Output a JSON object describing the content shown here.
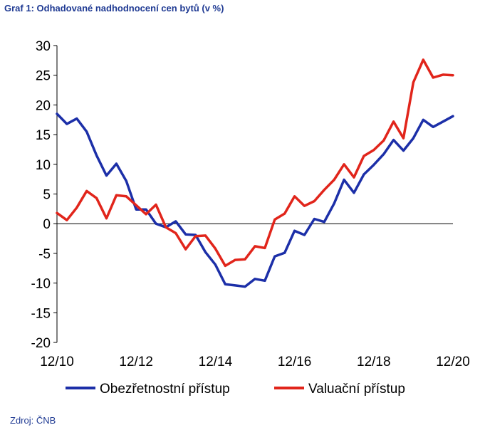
{
  "header": {
    "title": "Graf 1: Odhadované nadhodnocení cen bytů (v %)"
  },
  "footer": {
    "source": "Zdroj: ČNB"
  },
  "colors": {
    "series_blue": "#1c2fa8",
    "series_red": "#e1251b"
  },
  "chart_data": {
    "type": "line",
    "title": "Graf 1: Odhadované nadhodnocení cen bytů (v %)",
    "xlabel": "",
    "ylabel": "",
    "ylim": [
      -20,
      30
    ],
    "yticks": [
      30,
      25,
      20,
      15,
      10,
      5,
      0,
      -5,
      -10,
      -15,
      -20
    ],
    "xticks": [
      "12/10",
      "12/12",
      "12/14",
      "12/16",
      "12/18",
      "12/20"
    ],
    "grid": false,
    "legend": "bottom",
    "x": [
      "12/10",
      "3/11",
      "6/11",
      "9/11",
      "12/11",
      "3/12",
      "6/12",
      "9/12",
      "12/12",
      "3/13",
      "6/13",
      "9/13",
      "12/13",
      "3/14",
      "6/14",
      "9/14",
      "12/14",
      "3/15",
      "6/15",
      "9/15",
      "12/15",
      "3/16",
      "6/16",
      "9/16",
      "12/16",
      "3/17",
      "6/17",
      "9/17",
      "12/17",
      "3/18",
      "6/18",
      "9/18",
      "12/18",
      "3/19",
      "6/19",
      "9/19",
      "12/19",
      "3/20",
      "6/20",
      "9/20",
      "12/20"
    ],
    "series": [
      {
        "name": "Obezřetnostní přístup",
        "color": "#1c2fa8",
        "values": [
          18.5,
          16.8,
          17.7,
          15.5,
          11.5,
          8.1,
          10.1,
          7.2,
          2.4,
          2.4,
          0,
          -0.6,
          0.4,
          -1.8,
          -1.9,
          -4.8,
          -6.9,
          -10.2,
          -10.4,
          -10.6,
          -9.3,
          -9.6,
          -5.5,
          -4.9,
          -1.2,
          -1.9,
          0.8,
          0.3,
          3.4,
          7.4,
          5.2,
          8.3,
          9.9,
          11.7,
          14.1,
          12.3,
          14.4,
          17.5,
          16.3,
          17.2,
          18.1
        ]
      },
      {
        "name": "Valuační přístup",
        "color": "#e1251b",
        "values": [
          1.8,
          0.6,
          2.7,
          5.5,
          4.3,
          0.9,
          4.8,
          4.6,
          3.1,
          1.6,
          3.2,
          -0.6,
          -1.6,
          -4.3,
          -2.1,
          -2,
          -4.2,
          -7.1,
          -6.1,
          -6,
          -3.8,
          -4.1,
          0.7,
          1.7,
          4.6,
          3,
          3.8,
          5.7,
          7.4,
          10,
          7.8,
          11.4,
          12.4,
          14,
          17.2,
          14.4,
          23.8,
          27.6,
          24.6,
          25.1,
          25
        ]
      }
    ]
  }
}
